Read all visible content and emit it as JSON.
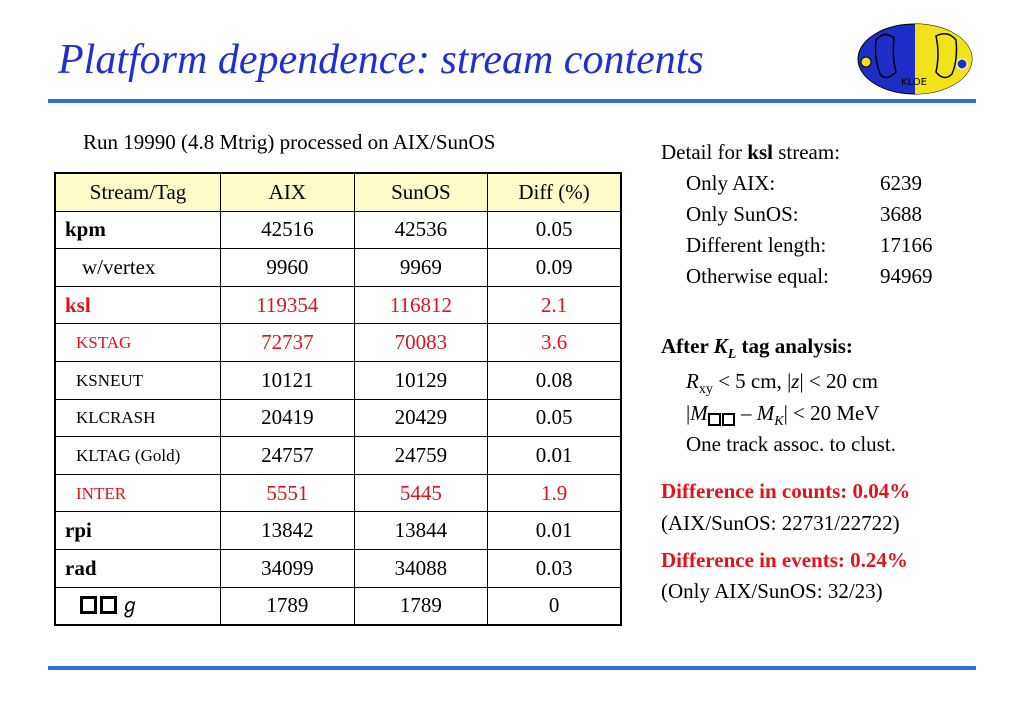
{
  "title": "Platform dependence: stream contents",
  "subtitle": "Run 19990 (4.8 Mtrig) processed on AIX/SunOS",
  "table": {
    "headers": [
      "Stream/Tag",
      "AIX",
      "SunOS",
      "Diff (%)"
    ],
    "rows": [
      {
        "name": "kpm",
        "aix": "42516",
        "sunos": "42536",
        "diff": "0.05"
      },
      {
        "name": "w/vertex",
        "aix": "9960",
        "sunos": "9969",
        "diff": "0.09"
      },
      {
        "name": "ksl",
        "aix": "119354",
        "sunos": "116812",
        "diff": "2.1"
      },
      {
        "name": "KSTAG",
        "aix": "72737",
        "sunos": "70083",
        "diff": "3.6"
      },
      {
        "name": "KSNEUT",
        "aix": "10121",
        "sunos": "10129",
        "diff": "0.08"
      },
      {
        "name": "KLCRASH",
        "aix": "20419",
        "sunos": "20429",
        "diff": "0.05"
      },
      {
        "name": "KLTAG (Gold)",
        "aix": "24757",
        "sunos": "24759",
        "diff": "0.01"
      },
      {
        "name": "INTER",
        "aix": "5551",
        "sunos": "5445",
        "diff": "1.9"
      },
      {
        "name": "rpi",
        "aix": "13842",
        "sunos": "13844",
        "diff": "0.01"
      },
      {
        "name": "rad",
        "aix": "34099",
        "sunos": "34088",
        "diff": "0.03"
      },
      {
        "name": "",
        "aix": "1789",
        "sunos": "1789",
        "diff": "0"
      }
    ]
  },
  "detail": {
    "prefix": "Detail for ",
    "stream": "ksl",
    "suffix": " stream:",
    "items": [
      {
        "label": "Only AIX:",
        "value": "6239"
      },
      {
        "label": "Only SunOS:",
        "value": "3688"
      },
      {
        "label": "Different length:",
        "value": "17166"
      },
      {
        "label": "Otherwise equal:",
        "value": "94969"
      }
    ]
  },
  "after": {
    "prefix": "After ",
    "k": "K",
    "ksub": "L",
    "suffix": " tag analysis:",
    "cut1_r": "R",
    "cut1_rsub": "xy",
    "cut1_a": " < 5 cm, |",
    "cut1_z": "z",
    "cut1_b": "| < 20 cm",
    "cut2_a": "|",
    "cut2_m": "M",
    "cut2_b": " – ",
    "cut2_mk": "M",
    "cut2_k": "K",
    "cut2_c": "| < 20 MeV",
    "cut3": "One track assoc. to clust."
  },
  "diff_counts": {
    "heading": "Difference in counts: 0.04%",
    "detail": "(AIX/SunOS: 22731/22722)"
  },
  "diff_events": {
    "heading": "Difference in events: 0.24%",
    "detail": "(Only AIX/SunOS: 32/23)"
  },
  "colors": {
    "title": "#1f2fd6",
    "rule": "#2f6fd8",
    "highlight": "#e3121b",
    "header_bg": "#fdfcc8"
  },
  "logo": {
    "text": "KLOE",
    "icon": "kloe-logo-icon"
  }
}
